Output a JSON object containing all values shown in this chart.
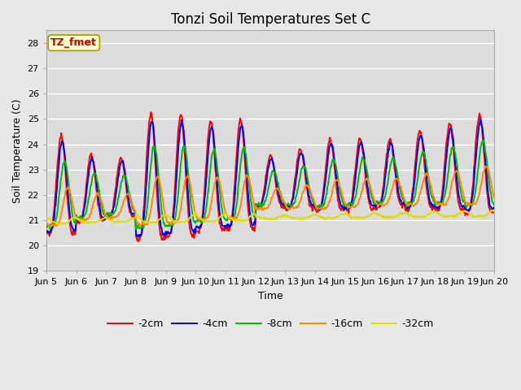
{
  "title": "Tonzi Soil Temperatures Set C",
  "xlabel": "Time",
  "ylabel": "Soil Temperature (C)",
  "ylim": [
    19.0,
    28.5
  ],
  "yticks": [
    19.0,
    20.0,
    21.0,
    22.0,
    23.0,
    24.0,
    25.0,
    26.0,
    27.0,
    28.0
  ],
  "annotation_text": "TZ_fmet",
  "annotation_color": "#cc0000",
  "annotation_bg": "#ffffcc",
  "annotation_border": "#aa9900",
  "fig_bg_color": "#e8e8e8",
  "plot_bg": "#dcdcdc",
  "series_colors": [
    "#ff0000",
    "#0000ee",
    "#00bb00",
    "#ff8800",
    "#dddd00"
  ],
  "series_labels": [
    "-2cm",
    "-4cm",
    "-8cm",
    "-16cm",
    "-32cm"
  ],
  "series_linewidths": [
    1.4,
    1.4,
    1.4,
    1.4,
    1.4
  ],
  "xtick_labels": [
    "Jun 5",
    "Jun 6",
    "Jun 7",
    "Jun 8",
    "Jun 9",
    "Jun 10",
    "Jun 11",
    "Jun 12",
    "Jun 13",
    "Jun 14",
    "Jun 15",
    "Jun 16",
    "Jun 17",
    "Jun 18",
    "Jun 19",
    "Jun 20"
  ],
  "n_days": 15,
  "pts_per_day": 48,
  "title_fontsize": 12,
  "axis_label_fontsize": 9,
  "tick_fontsize": 8,
  "legend_fontsize": 9,
  "grid_color": "#ffffff",
  "grid_linewidth": 1.0,
  "day_amps_2cm": [
    2.5,
    1.7,
    1.5,
    3.2,
    3.1,
    2.8,
    2.8,
    1.3,
    1.5,
    1.8,
    1.8,
    1.7,
    2.0,
    2.2,
    2.5
  ],
  "base_mean": 21.8,
  "base_slope": 0.06
}
